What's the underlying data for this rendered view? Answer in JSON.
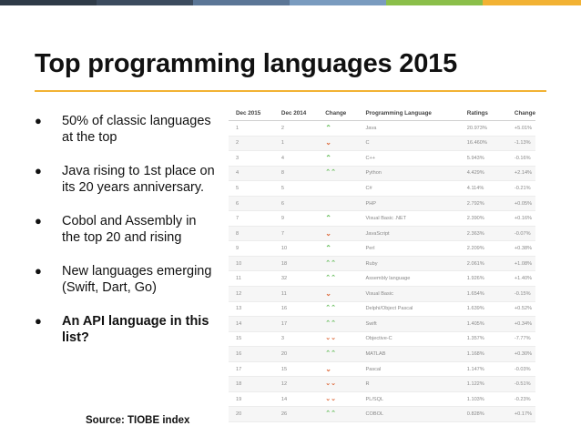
{
  "topbar_colors": [
    "#2f3b48",
    "#3c4b5e",
    "#5b7696",
    "#7a9bbf",
    "#8bbf4a",
    "#f2b234"
  ],
  "title": "Top programming languages 2015",
  "bullets": [
    {
      "text": "50% of classic languages at the top",
      "bold": false
    },
    {
      "text": "Java rising to 1st place on its 20 years anniversary.",
      "bold": false
    },
    {
      "text": "Cobol and Assembly in the top 20 and rising",
      "bold": false
    },
    {
      "text": "New languages emerging (Swift, Dart, Go)",
      "bold": false
    },
    {
      "text": "An API language in this list?",
      "bold": true
    }
  ],
  "bullet_symbol": "●",
  "source": "Source: TIOBE index",
  "table": {
    "headers": [
      "Dec 2015",
      "Dec 2014",
      "Change",
      "Programming Language",
      "Ratings",
      "Change"
    ],
    "rows": [
      {
        "dec2015": "1",
        "dec2014": "2",
        "change_icon": "arrow-up",
        "language": "Java",
        "rating": "20.973%",
        "delta": "+5.01%"
      },
      {
        "dec2015": "2",
        "dec2014": "1",
        "change_icon": "arrow-down",
        "language": "C",
        "rating": "16.460%",
        "delta": "-1.13%"
      },
      {
        "dec2015": "3",
        "dec2014": "4",
        "change_icon": "arrow-up",
        "language": "C++",
        "rating": "5.943%",
        "delta": "-0.16%"
      },
      {
        "dec2015": "4",
        "dec2014": "8",
        "change_icon": "double-arrow-up",
        "language": "Python",
        "rating": "4.429%",
        "delta": "+2.14%"
      },
      {
        "dec2015": "5",
        "dec2014": "5",
        "change_icon": "",
        "language": "C#",
        "rating": "4.114%",
        "delta": "-0.21%"
      },
      {
        "dec2015": "6",
        "dec2014": "6",
        "change_icon": "",
        "language": "PHP",
        "rating": "2.792%",
        "delta": "+0.05%"
      },
      {
        "dec2015": "7",
        "dec2014": "9",
        "change_icon": "arrow-up",
        "language": "Visual Basic .NET",
        "rating": "2.390%",
        "delta": "+0.16%"
      },
      {
        "dec2015": "8",
        "dec2014": "7",
        "change_icon": "arrow-down",
        "language": "JavaScript",
        "rating": "2.363%",
        "delta": "-0.07%"
      },
      {
        "dec2015": "9",
        "dec2014": "10",
        "change_icon": "arrow-up",
        "language": "Perl",
        "rating": "2.209%",
        "delta": "+0.38%"
      },
      {
        "dec2015": "10",
        "dec2014": "18",
        "change_icon": "double-arrow-up",
        "language": "Ruby",
        "rating": "2.061%",
        "delta": "+1.08%"
      },
      {
        "dec2015": "11",
        "dec2014": "32",
        "change_icon": "double-arrow-up",
        "language": "Assembly language",
        "rating": "1.926%",
        "delta": "+1.40%"
      },
      {
        "dec2015": "12",
        "dec2014": "11",
        "change_icon": "arrow-down",
        "language": "Visual Basic",
        "rating": "1.654%",
        "delta": "-0.15%"
      },
      {
        "dec2015": "13",
        "dec2014": "16",
        "change_icon": "double-arrow-up",
        "language": "Delphi/Object Pascal",
        "rating": "1.639%",
        "delta": "+0.52%"
      },
      {
        "dec2015": "14",
        "dec2014": "17",
        "change_icon": "double-arrow-up",
        "language": "Swift",
        "rating": "1.405%",
        "delta": "+0.34%"
      },
      {
        "dec2015": "15",
        "dec2014": "3",
        "change_icon": "double-arrow-down",
        "language": "Objective-C",
        "rating": "1.357%",
        "delta": "-7.77%"
      },
      {
        "dec2015": "16",
        "dec2014": "20",
        "change_icon": "double-arrow-up",
        "language": "MATLAB",
        "rating": "1.168%",
        "delta": "+0.30%"
      },
      {
        "dec2015": "17",
        "dec2014": "15",
        "change_icon": "arrow-down",
        "language": "Pascal",
        "rating": "1.147%",
        "delta": "-0.03%"
      },
      {
        "dec2015": "18",
        "dec2014": "12",
        "change_icon": "double-arrow-down",
        "language": "R",
        "rating": "1.122%",
        "delta": "-0.51%"
      },
      {
        "dec2015": "19",
        "dec2014": "14",
        "change_icon": "double-arrow-down",
        "language": "PL/SQL",
        "rating": "1.103%",
        "delta": "-0.23%"
      },
      {
        "dec2015": "20",
        "dec2014": "26",
        "change_icon": "double-arrow-up",
        "language": "COBOL",
        "rating": "0.828%",
        "delta": "+0.17%"
      }
    ]
  }
}
